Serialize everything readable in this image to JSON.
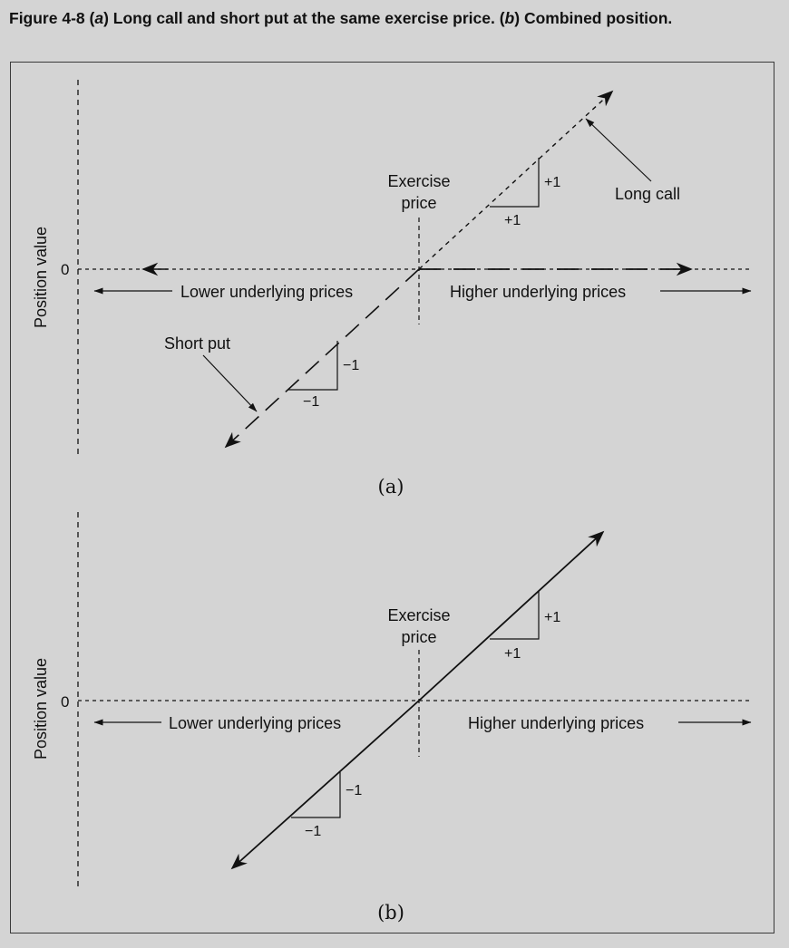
{
  "figure": {
    "caption": {
      "prefix": "Figure 4-8 ",
      "part_a_open": "(",
      "part_a": "a",
      "part_a_text": ") Long call and short put at the same exercise price. (",
      "part_b": "b",
      "part_b_text": ") Combined position."
    }
  },
  "panel_a": {
    "y_axis_label": "Position value",
    "zero_label": "0",
    "exercise_price_line1": "Exercise",
    "exercise_price_line2": "price",
    "lower_prices": "Lower underlying prices",
    "higher_prices": "Higher underlying prices",
    "long_call": "Long call",
    "short_put": "Short put",
    "slope_up_rise": "+1",
    "slope_up_run": "+1",
    "slope_down_rise": "−1",
    "slope_down_run": "−1",
    "panel_label": "(a)"
  },
  "panel_b": {
    "y_axis_label": "Position value",
    "zero_label": "0",
    "exercise_price_line1": "Exercise",
    "exercise_price_line2": "price",
    "lower_prices": "Lower underlying prices",
    "higher_prices": "Higher underlying prices",
    "slope_up_rise": "+1",
    "slope_up_run": "+1",
    "slope_down_rise": "−1",
    "slope_down_run": "−1",
    "panel_label": "(b)"
  }
}
